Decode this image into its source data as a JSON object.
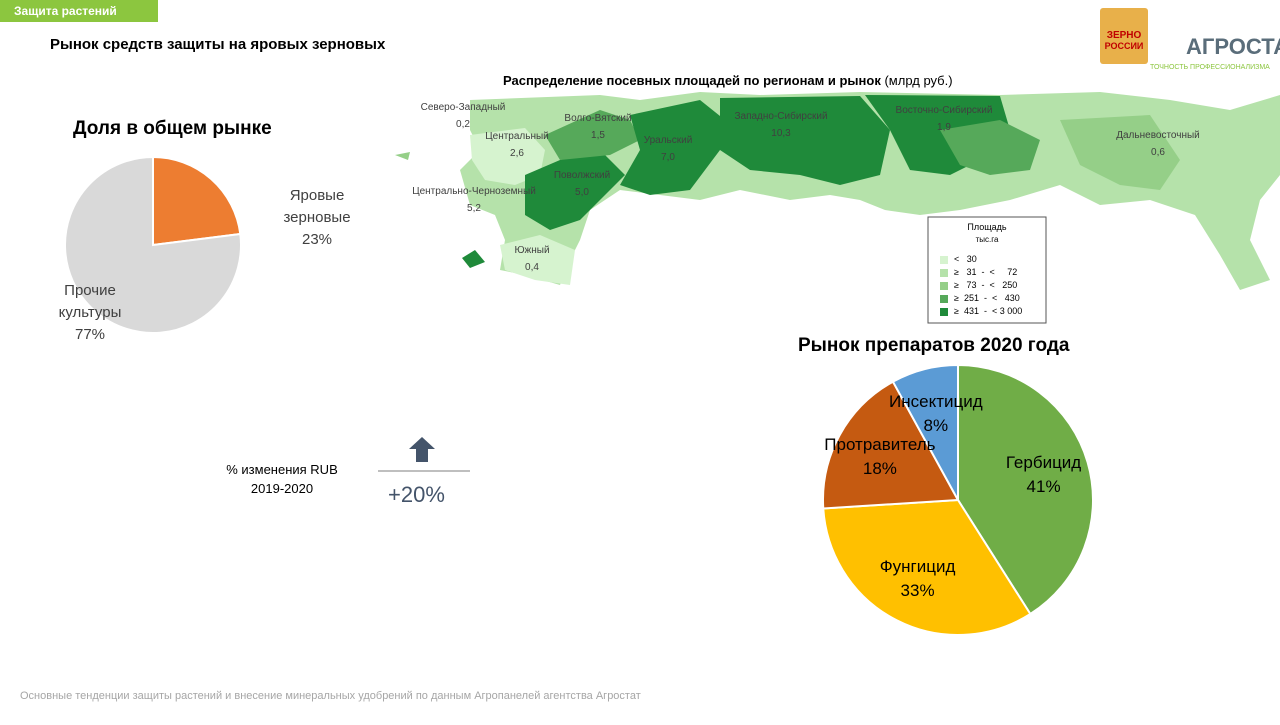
{
  "header": {
    "tag": "Защита растений",
    "title": "Рынок средств защиты на яровых зерновых"
  },
  "logos": {
    "zerno_line1": "ЗЕРНО",
    "zerno_line2": "РОССИИ",
    "agrostat": "АГРОСТАТ",
    "agrostat_slogan": "ТОЧНОСТЬ ПРОФЕССИОНАЛИЗМА"
  },
  "chart_data": [
    {
      "type": "pie",
      "title": "Доля в общем рынке",
      "categories": [
        "Яровые зерновые",
        "Прочие культуры"
      ],
      "values": [
        23,
        77
      ],
      "value_labels": [
        "23%",
        "77%"
      ],
      "colors": [
        "#ed7d31",
        "#d9d9d9"
      ]
    },
    {
      "type": "pie",
      "title": "Рынок препаратов 2020 года",
      "categories": [
        "Гербицид",
        "Фунгицид",
        "Протравитель",
        "Инсектицид"
      ],
      "values": [
        41,
        33,
        18,
        8
      ],
      "value_labels": [
        "41%",
        "33%",
        "18%",
        "8%"
      ],
      "colors": [
        "#70ad47",
        "#ffc000",
        "#c55a11",
        "#5b9bd5"
      ]
    }
  ],
  "change": {
    "label_line1": "% изменения RUB",
    "label_line2": "2019-2020",
    "value": "+20%"
  },
  "map": {
    "title": "Распределение посевных площадей по регионам и рынок",
    "unit": "(млрд руб.)",
    "regions": [
      {
        "name": "Северо-Западный",
        "value": "0,2"
      },
      {
        "name": "Центральный",
        "value": "2,6"
      },
      {
        "name": "Волго-Вятский",
        "value": "1,5"
      },
      {
        "name": "Уральский",
        "value": "7,0"
      },
      {
        "name": "Западно-Сибирский",
        "value": "10,3"
      },
      {
        "name": "Восточно-Сибирский",
        "value": "1,9"
      },
      {
        "name": "Дальневосточный",
        "value": "0,6"
      },
      {
        "name": "Центрально-Черноземный",
        "value": "5,2"
      },
      {
        "name": "Поволжский",
        "value": "5,0"
      },
      {
        "name": "Южный",
        "value": "0,4"
      }
    ],
    "legend": {
      "title": "Площадь",
      "unit": "тыс.га",
      "items": [
        {
          "label": "<   30",
          "color": "#d6f3cf"
        },
        {
          "label": "≥   31  -  <     72",
          "color": "#b5e2aa"
        },
        {
          "label": "≥   73  -  <   250",
          "color": "#95cf88"
        },
        {
          "label": "≥  251  -  <   430",
          "color": "#56a95a"
        },
        {
          "label": "≥  431  -  < 3 000",
          "color": "#1f8a3a"
        }
      ]
    }
  },
  "footer": "Основные тенденции защиты растений и внесение минеральных удобрений  по данным Агропанелей агентства Агростат"
}
